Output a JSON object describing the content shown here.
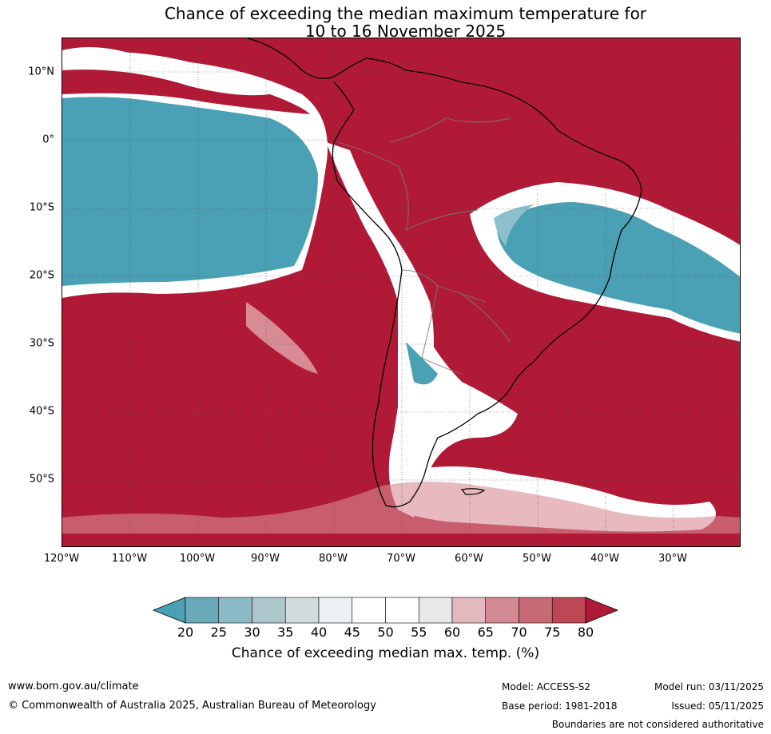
{
  "title": {
    "line1": "Chance of exceeding the median maximum temperature for",
    "line2": "10 to 16 November 2025"
  },
  "map": {
    "lat_labels": [
      "10°N",
      "0°",
      "10°S",
      "20°S",
      "30°S",
      "40°S",
      "50°S"
    ],
    "lon_labels": [
      "120°W",
      "110°W",
      "100°W",
      "90°W",
      "80°W",
      "70°W",
      "60°W",
      "50°W",
      "40°W",
      "30°W"
    ],
    "colors": {
      "high": "#b01a36",
      "low": "#4aa0b4",
      "mid_low": "#8cc0cc",
      "neutral": "#ffffff",
      "mid_high": "#d88a95"
    }
  },
  "colorbar": {
    "ticks": [
      "20",
      "25",
      "30",
      "35",
      "40",
      "45",
      "50",
      "55",
      "60",
      "65",
      "70",
      "75",
      "80"
    ],
    "colors": [
      "#4aa0b4",
      "#6aaab8",
      "#8cb9c6",
      "#adc6cc",
      "#d3dadc",
      "#ecf1f3",
      "#ffffff",
      "#ffffff",
      "#e8e8e8",
      "#e3b8be",
      "#d48a93",
      "#c86a75",
      "#be4756",
      "#b01a36"
    ],
    "label": "Chance of exceeding median max. temp. (%)"
  },
  "footer": {
    "website": "www.bom.gov.au/climate",
    "copyright": "© Commonwealth of Australia 2025, Australian Bureau of Meteorology",
    "model": "Model: ACCESS-S2",
    "base_period": "Base period: 1981-2018",
    "model_run": "Model run: 03/11/2025",
    "issued": "Issued: 05/11/2025",
    "disclaimer": "Boundaries are not considered authoritative"
  }
}
